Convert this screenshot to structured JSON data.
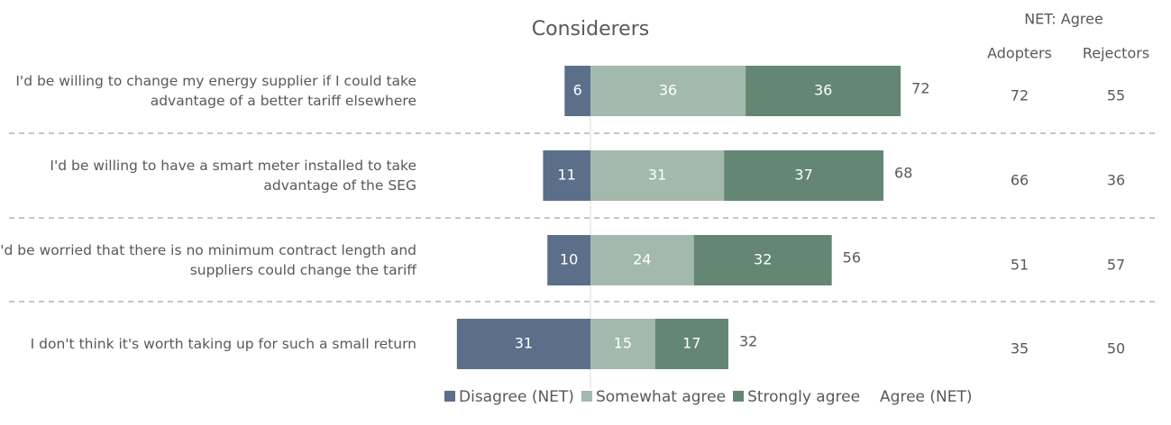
{
  "chart_data": {
    "type": "diverging_bar",
    "title": "Considerers",
    "categories": [
      "I'd be willing to change my energy supplier if I could take advantage of a better tariff elsewhere",
      "I'd be willing to have a smart meter installed to take advantage of the SEG",
      "I'd be worried that there is no minimum contract length and suppliers could change the tariff",
      "I don't think it's worth taking up for such a small return"
    ],
    "series": [
      {
        "name": "Disagree (NET)",
        "color": "#5b6f8b",
        "values": [
          6,
          11,
          10,
          31
        ]
      },
      {
        "name": "Somewhat agree",
        "color": "#a3b9ad",
        "values": [
          36,
          31,
          24,
          15
        ]
      },
      {
        "name": "Strongly agree",
        "color": "#638773",
        "values": [
          36,
          37,
          32,
          17
        ]
      },
      {
        "name": "Agree (NET)",
        "values": [
          72,
          68,
          56,
          32
        ]
      }
    ],
    "net_table": {
      "title": "NET: Agree",
      "columns": [
        {
          "name": "Adopters",
          "values": [
            72,
            66,
            51,
            35
          ]
        },
        {
          "name": "Rejectors",
          "values": [
            55,
            36,
            57,
            50
          ]
        }
      ]
    }
  }
}
